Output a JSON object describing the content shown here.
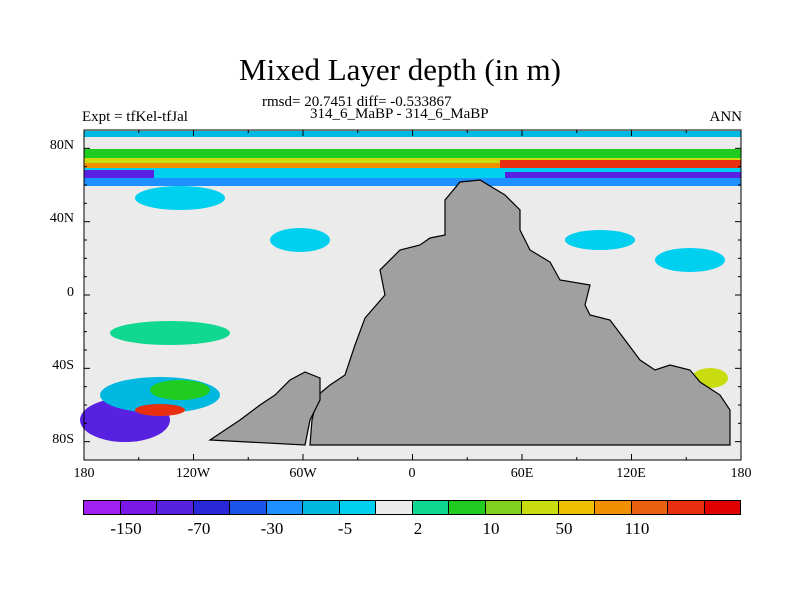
{
  "figure": {
    "title": "Mixed Layer depth (in m)",
    "stats_line": "rmsd= 20.7451 diff= -0.533867",
    "experiments_line": "314_6_MaBP - 314_6_MaBP",
    "left_label": "Expt = tfKel-tfJal",
    "right_label": "ANN"
  },
  "map": {
    "lat_ticks": [
      "80N",
      "40N",
      "0",
      "40S",
      "80S"
    ],
    "lon_ticks": [
      "180",
      "120W",
      "60W",
      "0",
      "60E",
      "120E",
      "180"
    ],
    "land_color": "#a0a0a0",
    "ocean_background_color": "#ebebeb"
  },
  "colorbar": {
    "colors": [
      "#a020f0",
      "#7a18e8",
      "#5820e0",
      "#2828d8",
      "#1a54e8",
      "#1e90ff",
      "#00b8e0",
      "#00d0f0",
      "#ebebeb",
      "#10d890",
      "#20cc20",
      "#80d020",
      "#c8dc10",
      "#f0c000",
      "#f09000",
      "#e86010",
      "#e83010",
      "#e00000"
    ],
    "labels": [
      "-150",
      "-70",
      "-30",
      "-5",
      "2",
      "10",
      "50",
      "110"
    ]
  }
}
